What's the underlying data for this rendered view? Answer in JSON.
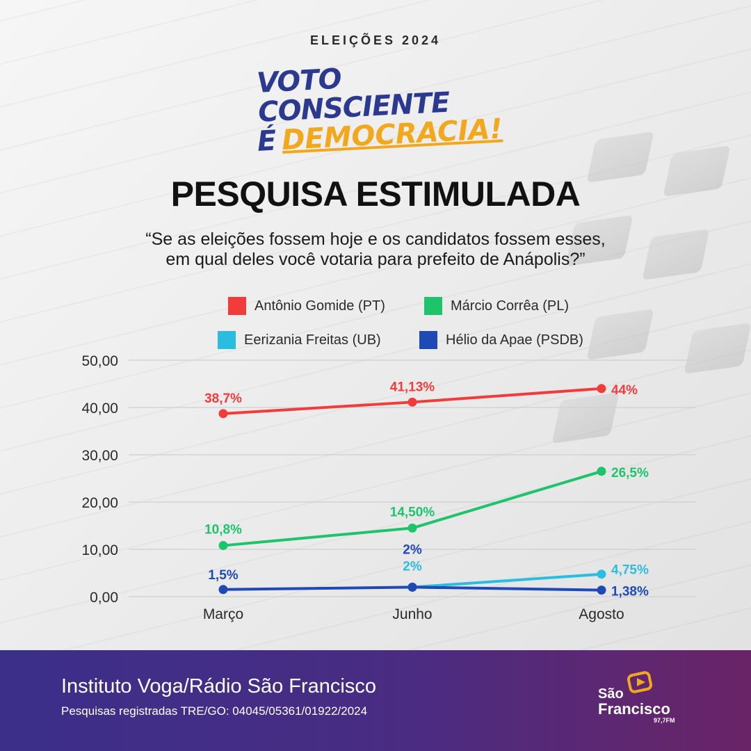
{
  "header": {
    "kicker": "ELEIÇÕES 2024",
    "slogan_line1": "VOTO CONSCIENTE",
    "slogan_line2a": "É",
    "slogan_line2b": "DEMOCRACIA!"
  },
  "title": "PESQUISA ESTIMULADA",
  "question_line1": "“Se as eleições fossem hoje e os candidatos fossem esses,",
  "question_line2": "em qual deles você votaria para prefeito de Anápolis?”",
  "colors": {
    "red": "#f23c3c",
    "green": "#1ec46b",
    "cyan": "#2bbde0",
    "blue": "#1f49b5",
    "footer_start": "#3b2f8a",
    "footer_end": "#6a2466"
  },
  "chart_data": {
    "type": "line",
    "categories": [
      "Março",
      "Junho",
      "Agosto"
    ],
    "ylim": [
      0,
      50
    ],
    "yticks": [
      "0,00",
      "10,00",
      "20,00",
      "30,00",
      "40,00",
      "50,00"
    ],
    "grid": true,
    "legend_position": "top",
    "series": [
      {
        "name": "Antônio Gomide (PT)",
        "color": "#f23c3c",
        "values": [
          38.7,
          41.13,
          44
        ],
        "labels": [
          "38,7%",
          "41,13%",
          "44%"
        ]
      },
      {
        "name": "Márcio Corrêa (PL)",
        "color": "#1ec46b",
        "values": [
          10.8,
          14.5,
          26.5
        ],
        "labels": [
          "10,8%",
          "14,50%",
          "26,5%"
        ]
      },
      {
        "name": "Eerizania Freitas (UB)",
        "color": "#2bbde0",
        "values": [
          null,
          2,
          4.75
        ],
        "labels": [
          "",
          "2%",
          "4,75%"
        ]
      },
      {
        "name": "Hélio da Apae (PSDB)",
        "color": "#1f49b5",
        "values": [
          1.5,
          2,
          1.38
        ],
        "labels": [
          "1,5%",
          "2%",
          "1,38%"
        ]
      }
    ]
  },
  "footer": {
    "source": "Instituto Voga/Rádio São Francisco",
    "registration": "Pesquisas registradas TRE/GO: 04045/05361/01922/2024",
    "logo_name_1": "São",
    "logo_name_2": "Francisco",
    "logo_freq": "97,7FM"
  }
}
